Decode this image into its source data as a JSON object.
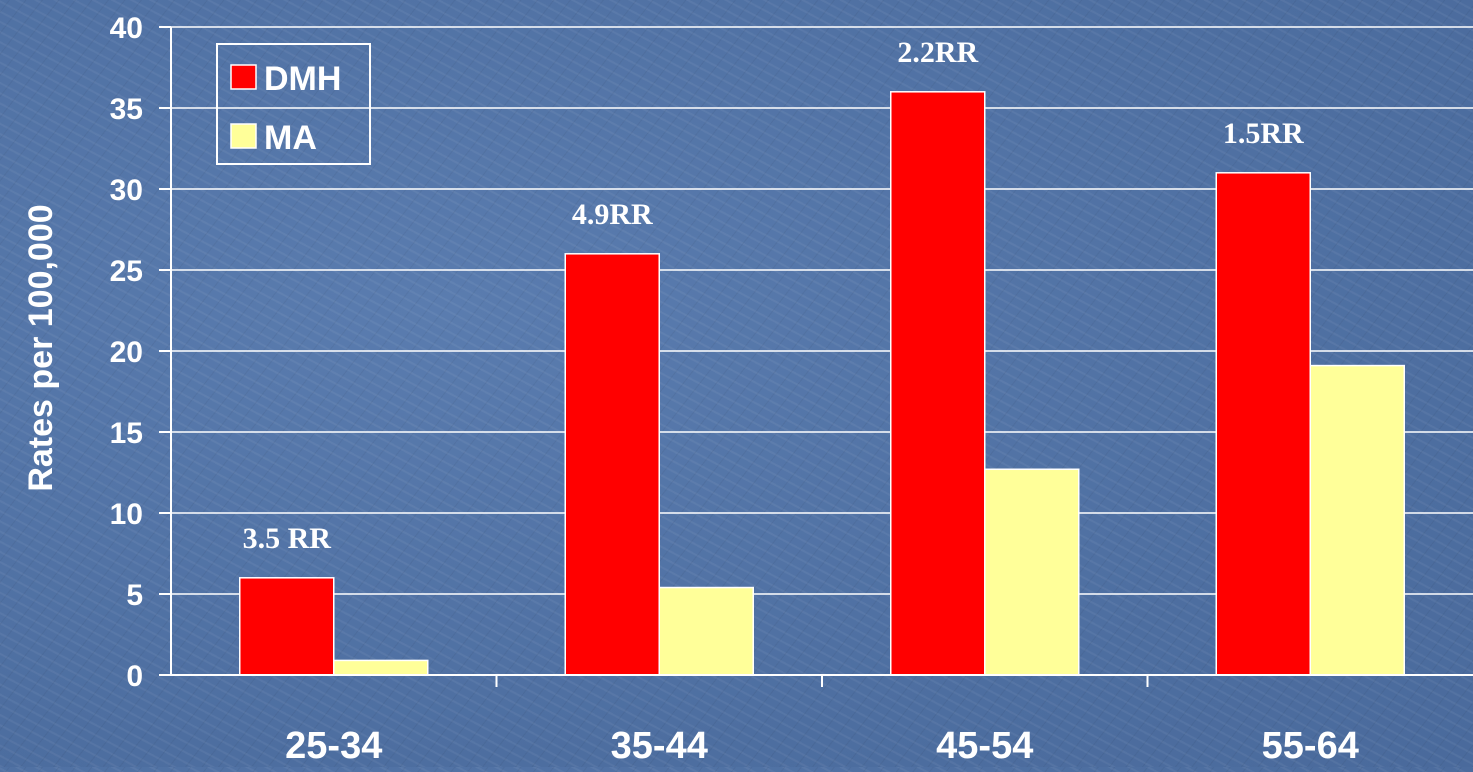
{
  "chart_data": {
    "type": "bar",
    "categories": [
      "25-34",
      "35-44",
      "45-54",
      "55-64"
    ],
    "series": [
      {
        "name": "DMH",
        "values": [
          6,
          26,
          36,
          31
        ],
        "color": "#ff0000"
      },
      {
        "name": "MA",
        "values": [
          0.9,
          5.4,
          12.7,
          19.1
        ],
        "color": "#ffff99"
      }
    ],
    "annotations": [
      "3.5 RR",
      "4.9RR",
      "2.2RR",
      "1.5RR"
    ],
    "title": "",
    "xlabel": "",
    "ylabel": "Rates per 100,000",
    "ylim": [
      0,
      40
    ],
    "yticks": [
      "0",
      "5",
      "10",
      "15",
      "20",
      "25",
      "30",
      "35",
      "40"
    ],
    "grid": true,
    "legend_position": "top-left"
  }
}
